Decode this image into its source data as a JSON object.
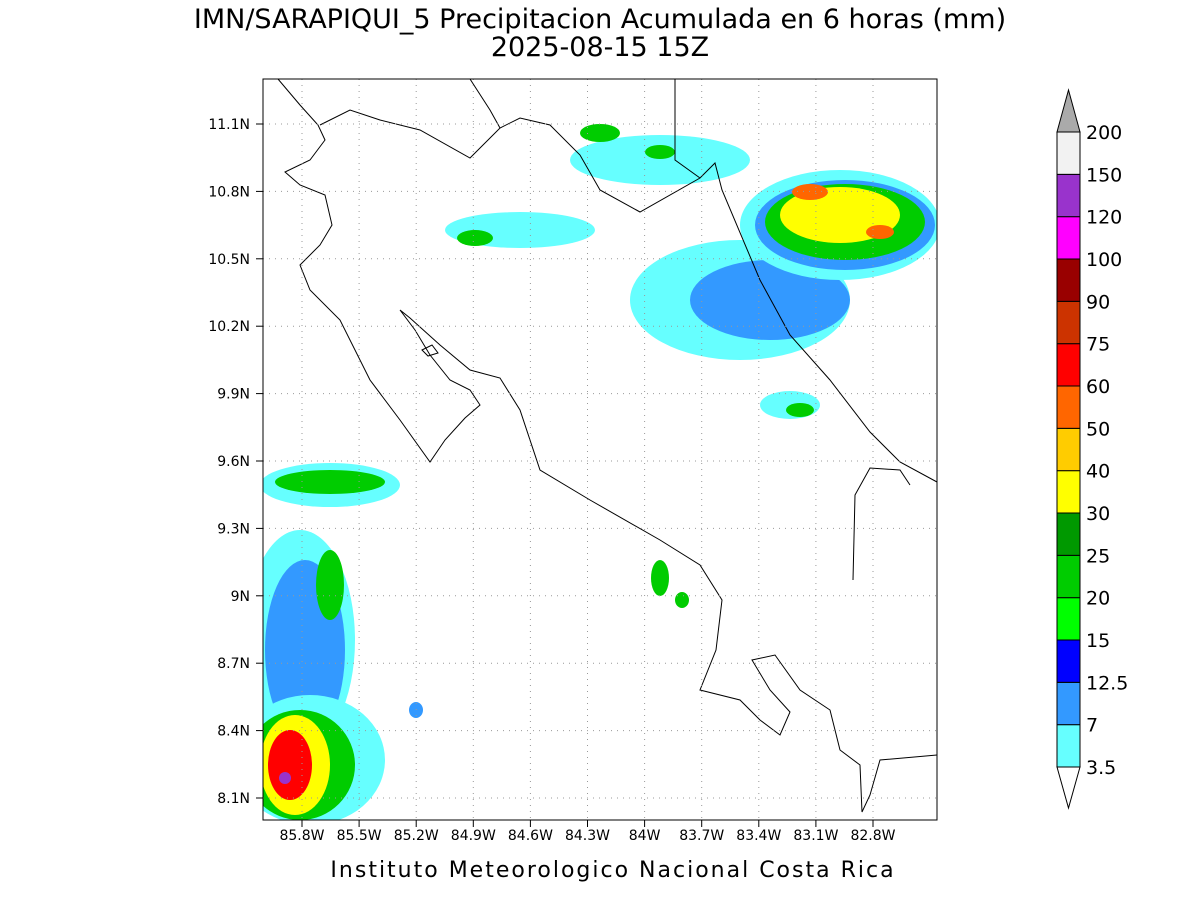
{
  "title": "IMN/SARAPIQUI_5 Precipitacion Acumulada en 6 horas (mm)",
  "subtitle": "2025-08-15 15Z",
  "map": {
    "lat_labels": [
      "11.1N",
      "10.8N",
      "10.5N",
      "10.2N",
      "9.9N",
      "9.6N",
      "9.3N",
      "9N",
      "8.7N",
      "8.4N",
      "8.1N"
    ],
    "lon_labels": [
      "85.8W",
      "85.5W",
      "85.2W",
      "84.9W",
      "84.6W",
      "84.3W",
      "84W",
      "83.7W",
      "83.4W",
      "83.1W",
      "82.8W"
    ]
  },
  "colorbar": {
    "levels": [
      {
        "label": "3.5",
        "color": "#66ffff"
      },
      {
        "label": "7",
        "color": "#3399ff"
      },
      {
        "label": "12.5",
        "color": "#0000ff"
      },
      {
        "label": "15",
        "color": "#00ff00"
      },
      {
        "label": "20",
        "color": "#00cc00"
      },
      {
        "label": "25",
        "color": "#009900"
      },
      {
        "label": "30",
        "color": "#ffff00"
      },
      {
        "label": "40",
        "color": "#ffcc00"
      },
      {
        "label": "50",
        "color": "#ff6600"
      },
      {
        "label": "60",
        "color": "#ff0000"
      },
      {
        "label": "75",
        "color": "#cc3300"
      },
      {
        "label": "90",
        "color": "#990000"
      },
      {
        "label": "100",
        "color": "#ff00ff"
      },
      {
        "label": "120",
        "color": "#9933cc"
      },
      {
        "label": "150",
        "color": "#f2f2f2"
      },
      {
        "label": "200",
        "color": "#aaaaaa"
      }
    ]
  },
  "footer": "Instituto Meteorologico Nacional Costa Rica"
}
